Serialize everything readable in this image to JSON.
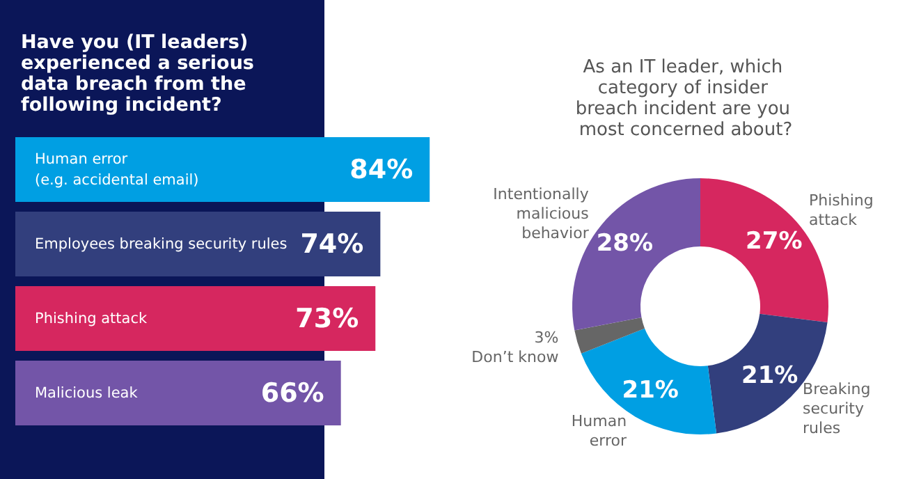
{
  "chart_data": [
    {
      "type": "bar",
      "orientation": "horizontal",
      "title": "Have you (IT leaders) experienced a serious data breach from the following incident?",
      "categories": [
        "Human error\n(e.g. accidental email)",
        "Employees breaking security rules",
        "Phishing attack",
        "Malicious leak"
      ],
      "values": [
        84,
        74,
        73,
        66
      ],
      "colors": [
        "#009fe3",
        "#323f7d",
        "#d6275f",
        "#7355a8"
      ],
      "value_labels": [
        "84%",
        "74%",
        "73%",
        "66%"
      ]
    },
    {
      "type": "donut",
      "title": "As an IT leader, which category of insider breach incident are you most concerned about?",
      "categories": [
        "Phishing\nattack",
        "Breaking\nsecurity\nrules",
        "Human\nerror",
        "Don’t know",
        "Intentionally\nmalicious\nbehavior"
      ],
      "values": [
        27,
        21,
        21,
        3,
        28
      ],
      "colors": [
        "#d6275f",
        "#323f7d",
        "#009fe3",
        "#666666",
        "#7355a8"
      ],
      "value_labels": [
        "27%",
        "21%",
        "21%",
        "3%",
        "28%"
      ]
    }
  ]
}
